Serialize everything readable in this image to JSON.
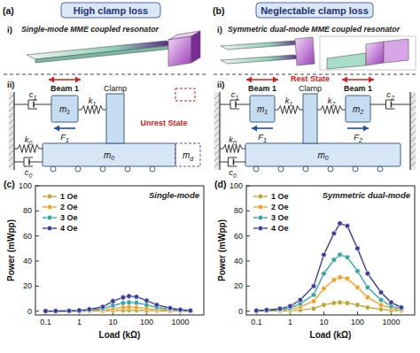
{
  "panels": [
    {
      "label": "(a)",
      "header": "High clamp loss",
      "part_i": "i)",
      "title": "Single-mode MME coupled resonator",
      "part_ii": "ii)",
      "clamp": "Clamp",
      "state": "Unrest State",
      "beams": [
        "Beam 1"
      ],
      "forces": [
        "F1"
      ],
      "masses": [
        "m1"
      ],
      "springs": [
        "k1"
      ],
      "dampers": [
        "c1"
      ],
      "base_mass": "m0",
      "base_spring": "k0",
      "base_damper": "c0",
      "extra_mass": "md"
    },
    {
      "label": "(b)",
      "header": "Neglectable clamp loss",
      "part_i": "i)",
      "title": "Symmetric dual-mode MME coupled resonator",
      "part_ii": "ii)",
      "clamp": "Clamp",
      "state": "Rest State",
      "beams": [
        "Beam 1",
        "Beam 1"
      ],
      "forces": [
        "F1",
        "F2"
      ],
      "masses": [
        "m1",
        "m2"
      ],
      "springs": [
        "k1",
        "k2"
      ],
      "dampers": [
        "c1",
        "c2"
      ],
      "base_mass": "m0",
      "base_spring": "k0",
      "base_damper": "c0"
    }
  ],
  "chart_data": [
    {
      "type": "line",
      "label": "(c)",
      "subtitle": "Single-mode",
      "xlabel": "Load (kΩ)",
      "ylabel": "Power (mWpp)",
      "log": "x",
      "grid": false,
      "legend": "upper left",
      "marker": "circle",
      "xlim": [
        0.05,
        5000
      ],
      "xticks": [
        0.1,
        1,
        10,
        100,
        1000
      ],
      "ylim": [
        -3,
        100
      ],
      "yticks": [
        0,
        20,
        40,
        60,
        80,
        100
      ],
      "x": [
        0.1,
        0.2,
        0.5,
        1,
        2,
        5,
        10,
        20,
        30,
        50,
        100,
        200,
        500,
        1000,
        2000
      ],
      "series": [
        {
          "name": "1 Oe",
          "color": "#b9a634",
          "values": [
            0,
            0,
            0,
            0.1,
            0.1,
            0.2,
            0.5,
            0.7,
            0.8,
            0.7,
            0.5,
            0.3,
            0.2,
            0.1,
            0
          ]
        },
        {
          "name": "2 Oe",
          "color": "#f0a22e",
          "values": [
            0,
            0.1,
            0.1,
            0.2,
            0.4,
            0.9,
            2,
            3,
            3.2,
            3,
            2.2,
            1.3,
            0.7,
            0.3,
            0.1
          ]
        },
        {
          "name": "3 Oe",
          "color": "#35a3a0",
          "values": [
            0.1,
            0.1,
            0.2,
            0.4,
            0.9,
            2,
            4.5,
            6.5,
            7,
            6.7,
            5,
            3,
            1.5,
            0.7,
            0.3
          ]
        },
        {
          "name": "4 Oe",
          "color": "#3b3d96",
          "values": [
            0.1,
            0.2,
            0.3,
            0.6,
            1.5,
            3.5,
            8,
            11,
            12,
            11.5,
            8.5,
            5,
            2.5,
            1.2,
            0.5
          ]
        }
      ]
    },
    {
      "type": "line",
      "label": "(d)",
      "subtitle": "Symmetric dual-mode",
      "xlabel": "Load (kΩ)",
      "ylabel": "Power (mWpp)",
      "log": "x",
      "grid": false,
      "legend": "upper left",
      "marker": "circle",
      "xlim": [
        0.05,
        5000
      ],
      "xticks": [
        0.1,
        1,
        10,
        100,
        1000
      ],
      "ylim": [
        -3,
        100
      ],
      "yticks": [
        0,
        20,
        40,
        60,
        80,
        100
      ],
      "x": [
        0.1,
        0.2,
        0.5,
        1,
        2,
        5,
        10,
        20,
        30,
        50,
        100,
        200,
        500,
        1000,
        2000
      ],
      "series": [
        {
          "name": "1 Oe",
          "color": "#b9a634",
          "values": [
            0.1,
            0.1,
            0.2,
            0.4,
            1,
            2,
            5,
            6.5,
            7,
            6.5,
            5,
            3,
            1.5,
            0.7,
            0.3
          ]
        },
        {
          "name": "2 Oe",
          "color": "#f0a22e",
          "values": [
            0.2,
            0.4,
            0.8,
            1.5,
            3.5,
            8,
            18,
            25,
            27,
            26,
            19,
            11,
            5,
            2.5,
            1
          ]
        },
        {
          "name": "3 Oe",
          "color": "#35a3a0",
          "values": [
            0.3,
            0.6,
            1.2,
            2.5,
            6,
            13,
            30,
            41,
            45,
            43,
            32,
            19,
            9,
            4,
            2
          ]
        },
        {
          "name": "4 Oe",
          "color": "#3b3d96",
          "values": [
            0.5,
            1,
            2,
            4,
            9,
            20,
            45,
            62,
            70,
            68,
            50,
            30,
            15,
            7,
            3
          ]
        }
      ]
    }
  ]
}
